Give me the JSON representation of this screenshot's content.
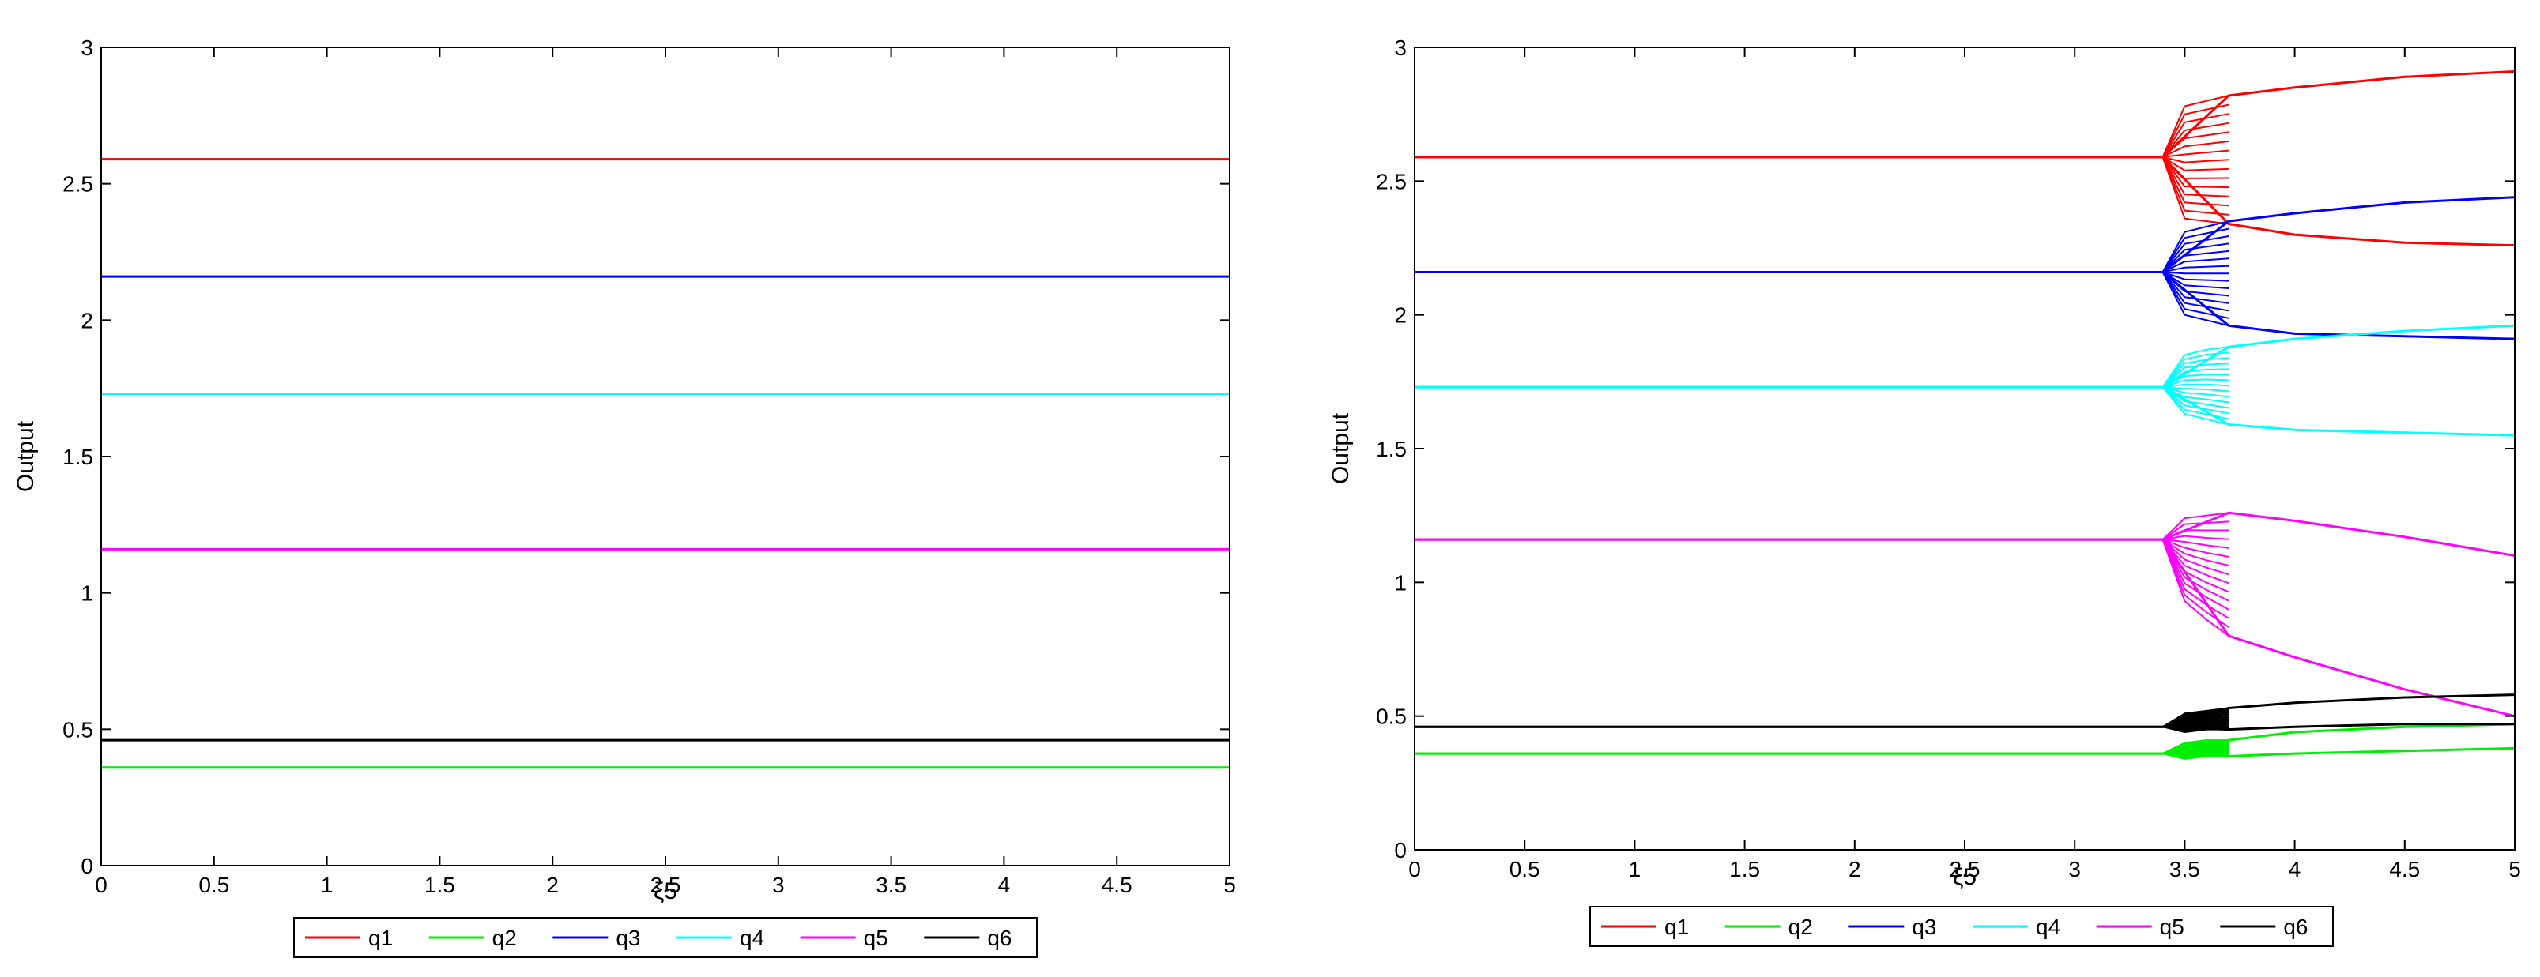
{
  "chart_data": [
    {
      "type": "line",
      "xlabel": "ξ5",
      "ylabel": "Output",
      "xlim": [
        0,
        5
      ],
      "ylim": [
        0,
        3
      ],
      "xticks": [
        "0",
        "0.5",
        "1",
        "1.5",
        "2",
        "2.5",
        "3",
        "3.5",
        "4",
        "4.5",
        "5"
      ],
      "yticks": [
        "0",
        "0.5",
        "1",
        "1.5",
        "2",
        "2.5",
        "3"
      ],
      "legend_position": "bottom",
      "series": [
        {
          "name": "q1",
          "color": "#ff0000",
          "branches": [
            {
              "x": [
                0,
                5
              ],
              "y": [
                2.59,
                2.59
              ]
            }
          ]
        },
        {
          "name": "q2",
          "color": "#00ee00",
          "branches": [
            {
              "x": [
                0,
                5
              ],
              "y": [
                0.36,
                0.36
              ]
            }
          ]
        },
        {
          "name": "q3",
          "color": "#0000ff",
          "branches": [
            {
              "x": [
                0,
                5
              ],
              "y": [
                2.16,
                2.16
              ]
            }
          ]
        },
        {
          "name": "q4",
          "color": "#00ffff",
          "branches": [
            {
              "x": [
                0,
                5
              ],
              "y": [
                1.73,
                1.73
              ]
            }
          ]
        },
        {
          "name": "q5",
          "color": "#ff00ff",
          "branches": [
            {
              "x": [
                0,
                5
              ],
              "y": [
                1.16,
                1.16
              ]
            }
          ]
        },
        {
          "name": "q6",
          "color": "#000000",
          "branches": [
            {
              "x": [
                0,
                5
              ],
              "y": [
                0.46,
                0.46
              ]
            }
          ]
        }
      ]
    },
    {
      "type": "line",
      "xlabel": "ξ5",
      "ylabel": "Output",
      "xlim": [
        0,
        5
      ],
      "ylim": [
        0,
        3
      ],
      "xticks": [
        "0",
        "0.5",
        "1",
        "1.5",
        "2",
        "2.5",
        "3",
        "3.5",
        "4",
        "4.5",
        "5"
      ],
      "yticks": [
        "0",
        "0.5",
        "1",
        "1.5",
        "2",
        "2.5",
        "3"
      ],
      "legend_position": "bottom",
      "series": [
        {
          "name": "q1",
          "color": "#ff0000",
          "branches": [
            {
              "x": [
                0,
                3.4,
                3.7,
                4,
                4.5,
                5
              ],
              "y": [
                2.59,
                2.59,
                2.82,
                2.85,
                2.89,
                2.91
              ]
            },
            {
              "x": [
                0,
                3.4,
                3.7,
                4,
                4.5,
                5
              ],
              "y": [
                2.59,
                2.59,
                2.34,
                2.3,
                2.27,
                2.26
              ]
            }
          ],
          "fan": [
            {
              "x": [
                3.4,
                3.5,
                3.6,
                3.7
              ],
              "y": [
                2.59,
                2.78,
                2.8,
                2.82
              ]
            },
            {
              "x": [
                3.4,
                3.5,
                3.6,
                3.7
              ],
              "y": [
                2.59,
                2.36,
                2.35,
                2.34
              ]
            }
          ]
        },
        {
          "name": "q2",
          "color": "#00ee00",
          "branches": [
            {
              "x": [
                0,
                3.4,
                3.7,
                4,
                4.5,
                5
              ],
              "y": [
                0.36,
                0.36,
                0.41,
                0.44,
                0.46,
                0.47
              ]
            },
            {
              "x": [
                0,
                3.4,
                3.7,
                4,
                4.5,
                5
              ],
              "y": [
                0.36,
                0.36,
                0.35,
                0.36,
                0.37,
                0.38
              ]
            }
          ],
          "fan": [
            {
              "x": [
                3.4,
                3.5,
                3.6,
                3.7
              ],
              "y": [
                0.36,
                0.4,
                0.41,
                0.41
              ]
            },
            {
              "x": [
                3.4,
                3.5,
                3.6,
                3.7
              ],
              "y": [
                0.36,
                0.34,
                0.35,
                0.35
              ]
            }
          ]
        },
        {
          "name": "q3",
          "color": "#0000ff",
          "branches": [
            {
              "x": [
                0,
                3.4,
                3.7,
                4,
                4.5,
                5
              ],
              "y": [
                2.16,
                2.16,
                2.35,
                2.38,
                2.42,
                2.44
              ]
            },
            {
              "x": [
                0,
                3.4,
                3.7,
                4,
                4.5,
                5
              ],
              "y": [
                2.16,
                2.16,
                1.96,
                1.93,
                1.92,
                1.91
              ]
            }
          ],
          "fan": [
            {
              "x": [
                3.4,
                3.5,
                3.6,
                3.7
              ],
              "y": [
                2.16,
                2.31,
                2.33,
                2.35
              ]
            },
            {
              "x": [
                3.4,
                3.5,
                3.6,
                3.7
              ],
              "y": [
                2.16,
                2.0,
                1.98,
                1.96
              ]
            }
          ]
        },
        {
          "name": "q4",
          "color": "#00ffff",
          "branches": [
            {
              "x": [
                0,
                3.4,
                3.7,
                4,
                4.5,
                5
              ],
              "y": [
                1.73,
                1.73,
                1.88,
                1.91,
                1.94,
                1.96
              ]
            },
            {
              "x": [
                0,
                3.4,
                3.7,
                4,
                4.5,
                5
              ],
              "y": [
                1.73,
                1.73,
                1.59,
                1.57,
                1.56,
                1.55
              ]
            }
          ],
          "fan": [
            {
              "x": [
                3.4,
                3.5,
                3.6,
                3.7
              ],
              "y": [
                1.73,
                1.85,
                1.87,
                1.88
              ]
            },
            {
              "x": [
                3.4,
                3.5,
                3.6,
                3.7
              ],
              "y": [
                1.73,
                1.63,
                1.61,
                1.59
              ]
            }
          ]
        },
        {
          "name": "q5",
          "color": "#ff00ff",
          "branches": [
            {
              "x": [
                0,
                3.4,
                3.7,
                4,
                4.5,
                5
              ],
              "y": [
                1.16,
                1.16,
                1.26,
                1.23,
                1.17,
                1.1
              ]
            },
            {
              "x": [
                0,
                3.4,
                3.7,
                4,
                4.5,
                5
              ],
              "y": [
                1.16,
                1.16,
                0.8,
                0.72,
                0.6,
                0.5
              ]
            }
          ],
          "fan": [
            {
              "x": [
                3.4,
                3.5,
                3.6,
                3.7
              ],
              "y": [
                1.16,
                1.24,
                1.25,
                1.26
              ]
            },
            {
              "x": [
                3.4,
                3.5,
                3.6,
                3.7
              ],
              "y": [
                1.16,
                0.93,
                0.86,
                0.8
              ]
            }
          ]
        },
        {
          "name": "q6",
          "color": "#000000",
          "branches": [
            {
              "x": [
                0,
                3.4,
                3.7,
                4,
                4.5,
                5
              ],
              "y": [
                0.46,
                0.46,
                0.53,
                0.55,
                0.57,
                0.58
              ]
            },
            {
              "x": [
                0,
                3.4,
                3.7,
                4,
                4.5,
                5
              ],
              "y": [
                0.46,
                0.46,
                0.45,
                0.46,
                0.47,
                0.47
              ]
            }
          ],
          "fan": [
            {
              "x": [
                3.4,
                3.5,
                3.6,
                3.7
              ],
              "y": [
                0.46,
                0.51,
                0.52,
                0.53
              ]
            },
            {
              "x": [
                3.4,
                3.5,
                3.6,
                3.7
              ],
              "y": [
                0.46,
                0.44,
                0.45,
                0.45
              ]
            }
          ]
        }
      ]
    }
  ]
}
